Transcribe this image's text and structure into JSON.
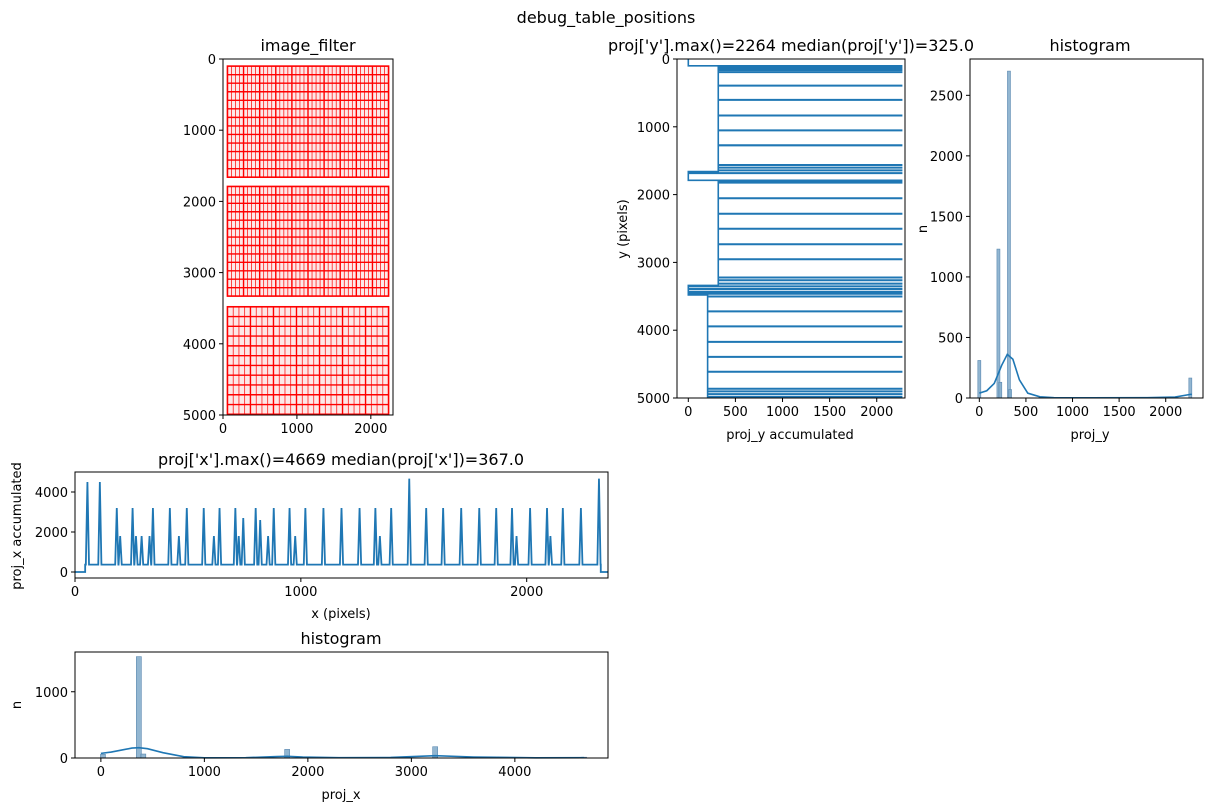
{
  "figure": {
    "suptitle": "debug_table_positions"
  },
  "colors": {
    "line": "#1f77b4",
    "hist_fill": "#7fa9c9",
    "frame": "#000000",
    "table_grid": "#ff0000",
    "page_bg": "#ffffff"
  },
  "chart_data": [
    {
      "id": "image_filter",
      "type": "image",
      "title": "image_filter",
      "xlim": [
        0,
        2300
      ],
      "ylim": [
        5000,
        0
      ],
      "xticks": [
        0,
        1000,
        2000
      ],
      "yticks": [
        0,
        1000,
        2000,
        3000,
        4000,
        5000
      ],
      "tables": [
        {
          "y0": 100,
          "y1": 1660,
          "cols": 40,
          "rows": 13
        },
        {
          "y0": 1790,
          "y1": 3330,
          "cols": 40,
          "rows": 13
        },
        {
          "y0": 3480,
          "y1": 4990,
          "cols": 28,
          "rows": 11
        }
      ]
    },
    {
      "id": "proj_y",
      "type": "line",
      "title": "proj['y'].max()=2264 median(proj['y'])=325.0",
      "xlabel": "proj_y accumulated",
      "ylabel": "y (pixels)",
      "xlim": [
        -120,
        2300
      ],
      "ylim": [
        5000,
        0
      ],
      "xticks": [
        0,
        500,
        1000,
        1500,
        2000
      ],
      "yticks": [
        0,
        1000,
        2000,
        3000,
        4000,
        5000
      ],
      "segments": [
        {
          "y0": 0,
          "y1": 100,
          "base": 0
        },
        {
          "y0": 100,
          "y1": 1660,
          "base": 318
        },
        {
          "y0": 1660,
          "y1": 1790,
          "base": 0
        },
        {
          "y0": 1790,
          "y1": 3340,
          "base": 318
        },
        {
          "y0": 3340,
          "y1": 3480,
          "base": 0
        },
        {
          "y0": 3480,
          "y1": 5000,
          "base": 205
        }
      ],
      "spikes": [
        100,
        130,
        160,
        190,
        390,
        600,
        830,
        1050,
        1270,
        1560,
        1600,
        1640,
        1680,
        1790,
        1820,
        2050,
        2280,
        2500,
        2730,
        2950,
        3220,
        3260,
        3310,
        3350,
        3390,
        3430,
        3460,
        3500,
        3720,
        3940,
        4170,
        4390,
        4610,
        4860,
        4900,
        4940,
        4980
      ],
      "spike_max": 2264
    },
    {
      "id": "hist_y",
      "type": "bar",
      "title": "histogram",
      "xlabel": "proj_y",
      "ylabel": "n",
      "xlim": [
        -100,
        2400
      ],
      "ylim": [
        0,
        2800
      ],
      "xticks": [
        0,
        500,
        1000,
        1500,
        2000
      ],
      "yticks": [
        0,
        500,
        1000,
        1500,
        2000,
        2500
      ],
      "bins": [
        {
          "x": 0,
          "n": 310
        },
        {
          "x": 205,
          "n": 1230
        },
        {
          "x": 225,
          "n": 130
        },
        {
          "x": 318,
          "n": 2700
        },
        {
          "x": 330,
          "n": 70
        },
        {
          "x": 2264,
          "n": 165
        }
      ],
      "kde": [
        [
          0,
          40
        ],
        [
          80,
          60
        ],
        [
          160,
          120
        ],
        [
          240,
          270
        ],
        [
          300,
          360
        ],
        [
          360,
          320
        ],
        [
          430,
          150
        ],
        [
          520,
          40
        ],
        [
          650,
          10
        ],
        [
          800,
          3
        ],
        [
          1200,
          2
        ],
        [
          1800,
          3
        ],
        [
          2100,
          8
        ],
        [
          2264,
          30
        ],
        [
          2280,
          30
        ]
      ]
    },
    {
      "id": "proj_x",
      "type": "line",
      "title": "proj['x'].max()=4669 median(proj['x'])=367.0",
      "xlabel": "x (pixels)",
      "ylabel": "proj_x accumulated",
      "xlim": [
        0,
        2360
      ],
      "ylim": [
        -300,
        5000
      ],
      "xticks": [
        0,
        1000,
        2000
      ],
      "yticks": [
        0,
        2000,
        4000
      ],
      "start": 55,
      "end": 2320,
      "base": 367,
      "peaks": [
        {
          "x": 55,
          "h": 4500
        },
        {
          "x": 110,
          "h": 4500
        },
        {
          "x": 185,
          "h": 3200
        },
        {
          "x": 200,
          "h": 1800
        },
        {
          "x": 255,
          "h": 3200
        },
        {
          "x": 270,
          "h": 1800
        },
        {
          "x": 295,
          "h": 1800
        },
        {
          "x": 330,
          "h": 1800
        },
        {
          "x": 345,
          "h": 3200
        },
        {
          "x": 420,
          "h": 3200
        },
        {
          "x": 460,
          "h": 1800
        },
        {
          "x": 495,
          "h": 3200
        },
        {
          "x": 570,
          "h": 3200
        },
        {
          "x": 615,
          "h": 1800
        },
        {
          "x": 640,
          "h": 3200
        },
        {
          "x": 710,
          "h": 3200
        },
        {
          "x": 725,
          "h": 1800
        },
        {
          "x": 745,
          "h": 2700
        },
        {
          "x": 800,
          "h": 3200
        },
        {
          "x": 820,
          "h": 2600
        },
        {
          "x": 855,
          "h": 1800
        },
        {
          "x": 880,
          "h": 3200
        },
        {
          "x": 950,
          "h": 3200
        },
        {
          "x": 975,
          "h": 1800
        },
        {
          "x": 1020,
          "h": 3200
        },
        {
          "x": 1100,
          "h": 3200
        },
        {
          "x": 1180,
          "h": 3200
        },
        {
          "x": 1260,
          "h": 3200
        },
        {
          "x": 1330,
          "h": 3200
        },
        {
          "x": 1350,
          "h": 1800
        },
        {
          "x": 1400,
          "h": 3200
        },
        {
          "x": 1480,
          "h": 4669
        },
        {
          "x": 1555,
          "h": 3200
        },
        {
          "x": 1630,
          "h": 3200
        },
        {
          "x": 1710,
          "h": 3200
        },
        {
          "x": 1790,
          "h": 3200
        },
        {
          "x": 1865,
          "h": 3200
        },
        {
          "x": 1935,
          "h": 3200
        },
        {
          "x": 1955,
          "h": 1800
        },
        {
          "x": 2015,
          "h": 3200
        },
        {
          "x": 2090,
          "h": 3200
        },
        {
          "x": 2105,
          "h": 1800
        },
        {
          "x": 2160,
          "h": 3200
        },
        {
          "x": 2240,
          "h": 3200
        },
        {
          "x": 2320,
          "h": 4669
        }
      ]
    },
    {
      "id": "hist_x",
      "type": "bar",
      "title": "histogram",
      "xlabel": "proj_x",
      "ylabel": "n",
      "xlim": [
        -250,
        4900
      ],
      "ylim": [
        0,
        1600
      ],
      "xticks": [
        0,
        1000,
        2000,
        3000,
        4000
      ],
      "yticks": [
        0,
        1000
      ],
      "bins": [
        {
          "x": 20,
          "n": 55
        },
        {
          "x": 367,
          "n": 1530
        },
        {
          "x": 410,
          "n": 60
        },
        {
          "x": 1800,
          "n": 130
        },
        {
          "x": 3230,
          "n": 170
        },
        {
          "x": 4669,
          "n": 12
        }
      ],
      "kde": [
        [
          0,
          70
        ],
        [
          100,
          90
        ],
        [
          200,
          120
        ],
        [
          300,
          150
        ],
        [
          367,
          155
        ],
        [
          450,
          140
        ],
        [
          600,
          80
        ],
        [
          800,
          20
        ],
        [
          1000,
          3
        ],
        [
          1400,
          5
        ],
        [
          1700,
          22
        ],
        [
          1800,
          25
        ],
        [
          1950,
          15
        ],
        [
          2300,
          5
        ],
        [
          2800,
          8
        ],
        [
          3230,
          35
        ],
        [
          3600,
          15
        ],
        [
          4200,
          3
        ],
        [
          4669,
          5
        ]
      ]
    }
  ]
}
